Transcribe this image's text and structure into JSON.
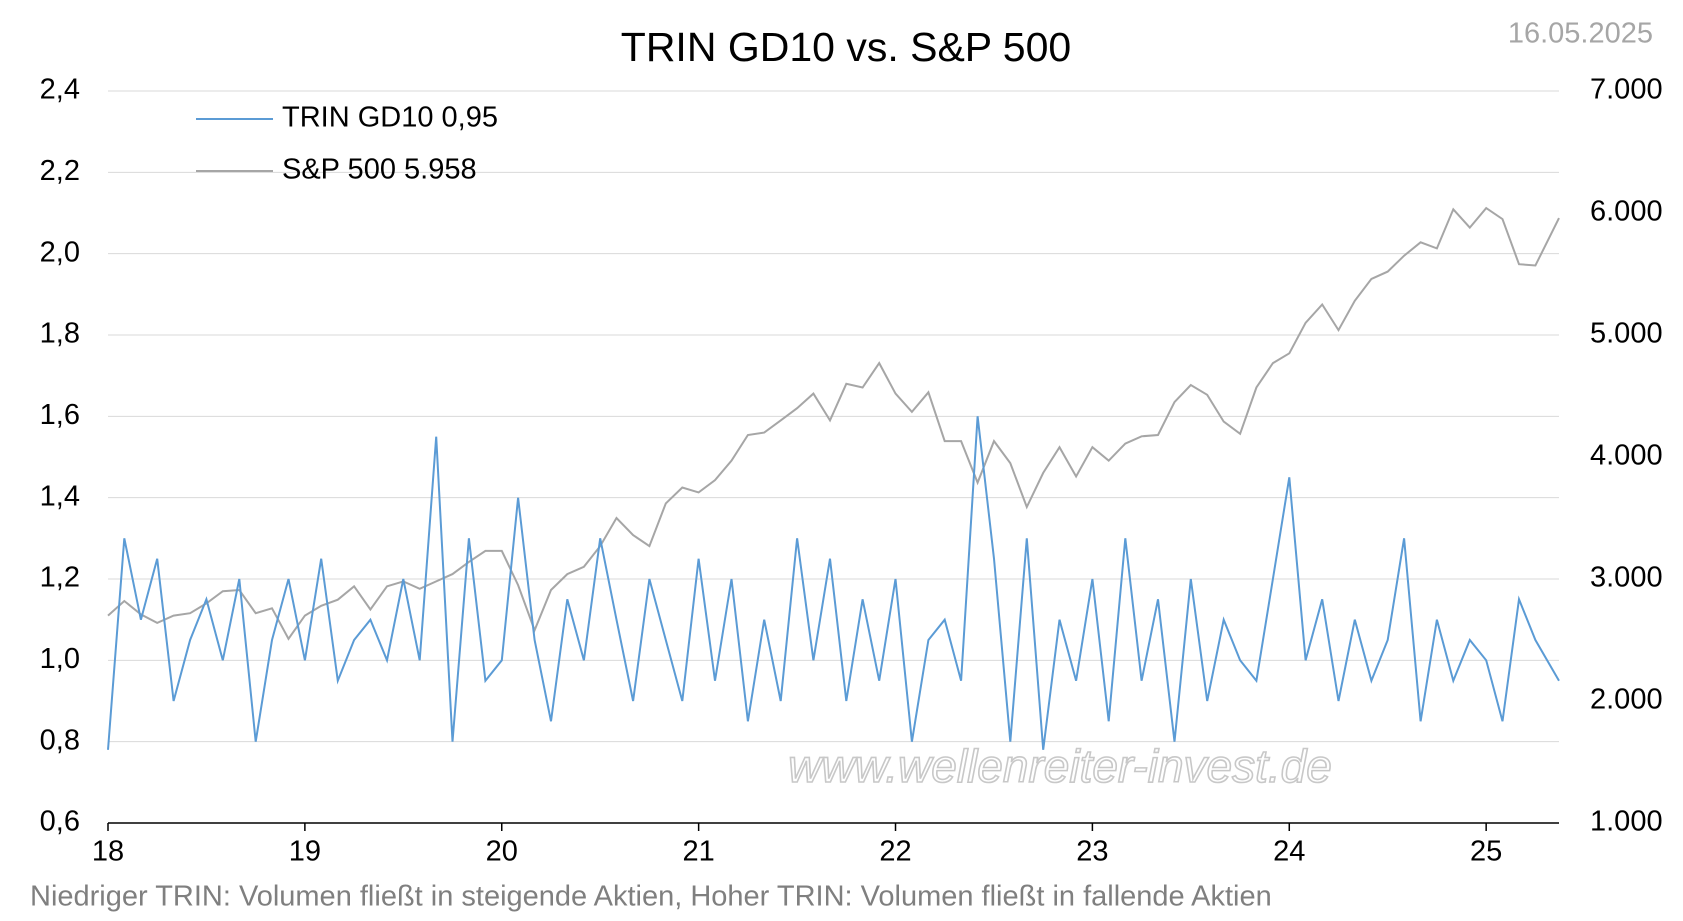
{
  "chart_data": {
    "type": "line",
    "title": "TRIN GD10 vs. S&P 500",
    "date": "16.05.2025",
    "watermark": "www.wellenreiter-invest.de",
    "footnote": "Niedriger TRIN: Volumen fließt in steigende Aktien, Hoher TRIN: Volumen fließt in fallende Aktien",
    "grid": true,
    "legend": "top-left",
    "x": [
      18,
      18.083,
      18.167,
      18.25,
      18.333,
      18.417,
      18.5,
      18.583,
      18.667,
      18.75,
      18.833,
      18.917,
      19,
      19.083,
      19.167,
      19.25,
      19.333,
      19.417,
      19.5,
      19.583,
      19.667,
      19.75,
      19.833,
      19.917,
      20,
      20.083,
      20.167,
      20.25,
      20.333,
      20.417,
      20.5,
      20.583,
      20.667,
      20.75,
      20.833,
      20.917,
      21,
      21.083,
      21.167,
      21.25,
      21.333,
      21.417,
      21.5,
      21.583,
      21.667,
      21.75,
      21.833,
      21.917,
      22,
      22.083,
      22.167,
      22.25,
      22.333,
      22.417,
      22.5,
      22.583,
      22.667,
      22.75,
      22.833,
      22.917,
      23,
      23.083,
      23.167,
      23.25,
      23.333,
      23.417,
      23.5,
      23.583,
      23.667,
      23.75,
      23.833,
      23.917,
      24,
      24.083,
      24.167,
      24.25,
      24.333,
      24.417,
      24.5,
      24.583,
      24.667,
      24.75,
      24.833,
      24.917,
      25,
      25.083,
      25.167,
      25.25,
      25.37
    ],
    "xlim": [
      18,
      25.37
    ],
    "xticks": [
      18,
      19,
      20,
      21,
      22,
      23,
      24,
      25
    ],
    "ylim": [
      0.6,
      2.4
    ],
    "yticks": [
      {
        "value": 0.6,
        "label": "0,6"
      },
      {
        "value": 0.8,
        "label": "0,8"
      },
      {
        "value": 1.0,
        "label": "1,0"
      },
      {
        "value": 1.2,
        "label": "1,2"
      },
      {
        "value": 1.4,
        "label": "1,4"
      },
      {
        "value": 1.6,
        "label": "1,6"
      },
      {
        "value": 1.8,
        "label": "1,8"
      },
      {
        "value": 2.0,
        "label": "2,0"
      },
      {
        "value": 2.2,
        "label": "2,2"
      },
      {
        "value": 2.4,
        "label": "2,4"
      }
    ],
    "y2lim": [
      1000,
      7000
    ],
    "y2ticks": [
      {
        "value": 1000,
        "label": "1.000"
      },
      {
        "value": 2000,
        "label": "2.000"
      },
      {
        "value": 3000,
        "label": "3.000"
      },
      {
        "value": 4000,
        "label": "4.000"
      },
      {
        "value": 5000,
        "label": "5.000"
      },
      {
        "value": 6000,
        "label": "6.000"
      },
      {
        "value": 7000,
        "label": "7.000"
      }
    ],
    "series": [
      {
        "name": "TRIN GD10 0,95",
        "color": "#5b9bd5",
        "values": [
          0.78,
          1.3,
          1.1,
          1.25,
          0.9,
          1.05,
          1.15,
          1.0,
          1.2,
          0.8,
          1.05,
          1.2,
          1.0,
          1.25,
          0.95,
          1.05,
          1.1,
          1.0,
          1.2,
          1.0,
          1.55,
          0.8,
          1.3,
          0.95,
          1.0,
          1.4,
          1.05,
          0.85,
          1.15,
          1.0,
          1.3,
          1.1,
          0.9,
          1.2,
          1.05,
          0.9,
          1.25,
          0.95,
          1.2,
          0.85,
          1.1,
          0.9,
          1.3,
          1.0,
          1.25,
          0.9,
          1.15,
          0.95,
          1.2,
          0.8,
          1.05,
          1.1,
          0.95,
          1.6,
          1.25,
          0.8,
          1.3,
          0.78,
          1.1,
          0.95,
          1.2,
          0.85,
          1.3,
          0.95,
          1.15,
          0.8,
          1.2,
          0.9,
          1.1,
          1.0,
          0.95,
          1.2,
          1.45,
          1.0,
          1.15,
          0.9,
          1.1,
          0.95,
          1.05,
          1.3,
          0.85,
          1.1,
          0.95,
          1.05,
          1.0,
          0.85,
          1.15,
          1.05,
          0.95
        ]
      },
      {
        "name": "S&P 500 5.958",
        "color": "#a6a6a6",
        "axis": "y2",
        "values": [
          2700,
          2820,
          2710,
          2640,
          2700,
          2720,
          2800,
          2900,
          2910,
          2720,
          2760,
          2510,
          2700,
          2780,
          2830,
          2940,
          2750,
          2940,
          2980,
          2920,
          2980,
          3040,
          3140,
          3230,
          3230,
          2950,
          2580,
          2910,
          3040,
          3100,
          3270,
          3500,
          3360,
          3270,
          3620,
          3750,
          3710,
          3810,
          3970,
          4180,
          4200,
          4300,
          4400,
          4520,
          4300,
          4600,
          4570,
          4770,
          4520,
          4370,
          4530,
          4130,
          4130,
          3790,
          4130,
          3950,
          3590,
          3870,
          4080,
          3840,
          4080,
          3970,
          4110,
          4170,
          4180,
          4450,
          4590,
          4510,
          4290,
          4190,
          4570,
          4770,
          4850,
          5100,
          5250,
          5040,
          5280,
          5460,
          5520,
          5650,
          5760,
          5710,
          6030,
          5880,
          6040,
          5950,
          5580,
          5570,
          5958
        ]
      }
    ]
  }
}
